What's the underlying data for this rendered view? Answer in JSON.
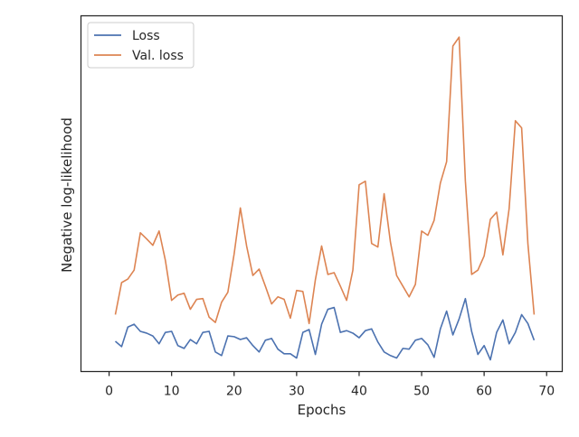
{
  "chart_data": {
    "type": "line",
    "xlabel": "Epochs",
    "ylabel": "Negative log-likelihood",
    "xlim": [
      -4.5,
      72.5
    ],
    "ylim": [
      0,
      100
    ],
    "xticks": [
      0,
      10,
      20,
      30,
      40,
      50,
      60,
      70
    ],
    "grid": false,
    "legend_position": "top-left",
    "x": [
      1,
      2,
      3,
      4,
      5,
      6,
      7,
      8,
      9,
      10,
      11,
      12,
      13,
      14,
      15,
      16,
      17,
      18,
      19,
      20,
      21,
      22,
      23,
      24,
      25,
      26,
      27,
      28,
      29,
      30,
      31,
      32,
      33,
      34,
      35,
      36,
      37,
      38,
      39,
      40,
      41,
      42,
      43,
      44,
      45,
      46,
      47,
      48,
      49,
      50,
      51,
      52,
      53,
      54,
      55,
      56,
      57,
      58,
      59,
      60,
      61,
      62,
      63,
      64,
      65,
      66,
      67,
      68
    ],
    "series": [
      {
        "name": "Loss",
        "color": "#4c72b0",
        "values": [
          8.5,
          7,
          12.5,
          13.3,
          11.3,
          10.8,
          10,
          7.8,
          11,
          11.3,
          7.3,
          6.5,
          9,
          7.8,
          11,
          11.3,
          5.5,
          4.5,
          10,
          9.8,
          9,
          9.5,
          7.3,
          5.5,
          8.8,
          9.3,
          6.3,
          5,
          5,
          3.8,
          11,
          11.8,
          4.8,
          13.3,
          17.5,
          18,
          11,
          11.5,
          10.8,
          9.5,
          11.5,
          12,
          8.3,
          5.5,
          4.5,
          3.8,
          6.5,
          6.3,
          8.8,
          9.3,
          7.5,
          4,
          12,
          17,
          10.3,
          14.8,
          20.5,
          11.3,
          4.8,
          7.3,
          3.3,
          11,
          14.5,
          7.8,
          11,
          16,
          13.5,
          8.8
        ]
      },
      {
        "name": "Val. loss",
        "color": "#dd8452",
        "values": [
          16,
          25,
          26,
          28.5,
          39,
          37.3,
          35.5,
          39.5,
          31.3,
          20,
          21.5,
          22,
          17.5,
          20.3,
          20.5,
          15.3,
          13.8,
          19.5,
          22.3,
          33,
          46,
          35.3,
          27,
          28.8,
          24,
          19,
          21,
          20.3,
          15,
          22.8,
          22.5,
          13.5,
          25.8,
          35.3,
          27.3,
          27.8,
          24,
          20,
          28.5,
          52.5,
          53.5,
          36,
          35,
          50,
          36.5,
          27,
          24,
          21,
          24.5,
          39.5,
          38.3,
          42.5,
          53,
          59,
          91.5,
          94,
          53.5,
          27.3,
          28.5,
          32.5,
          42.8,
          44.8,
          32.8,
          45.8,
          70.5,
          68.5,
          36,
          16
        ]
      }
    ]
  }
}
